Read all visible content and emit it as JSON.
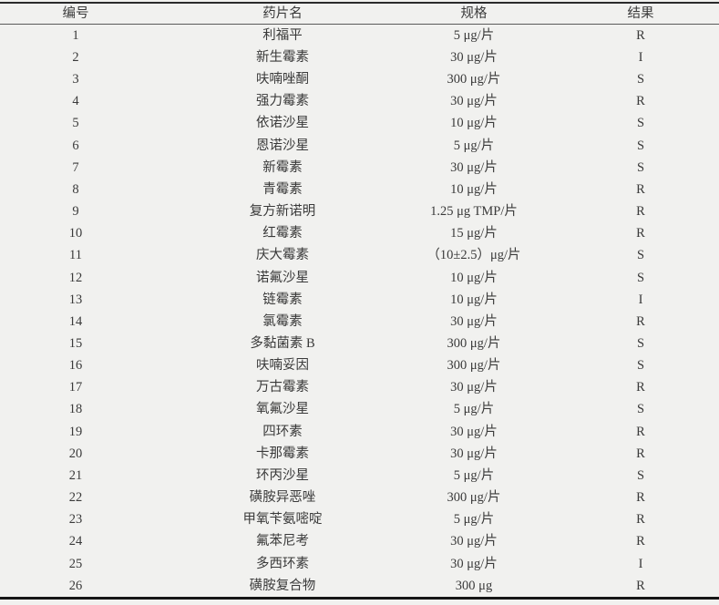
{
  "table": {
    "columns": [
      "编号",
      "药片名",
      "规格",
      "结果"
    ],
    "rows": [
      {
        "no": "1",
        "name": "利福平",
        "spec": "5 μg/片",
        "result": "R"
      },
      {
        "no": "2",
        "name": "新生霉素",
        "spec": "30 μg/片",
        "result": "I"
      },
      {
        "no": "3",
        "name": "呋喃唑酮",
        "spec": "300 μg/片",
        "result": "S"
      },
      {
        "no": "4",
        "name": "强力霉素",
        "spec": "30 μg/片",
        "result": "R"
      },
      {
        "no": "5",
        "name": "依诺沙星",
        "spec": "10 μg/片",
        "result": "S"
      },
      {
        "no": "6",
        "name": "恩诺沙星",
        "spec": "5 μg/片",
        "result": "S"
      },
      {
        "no": "7",
        "name": "新霉素",
        "spec": "30 μg/片",
        "result": "S"
      },
      {
        "no": "8",
        "name": "青霉素",
        "spec": "10 μg/片",
        "result": "R"
      },
      {
        "no": "9",
        "name": "复方新诺明",
        "spec": "1.25 μg TMP/片",
        "result": "R"
      },
      {
        "no": "10",
        "name": "红霉素",
        "spec": "15 μg/片",
        "result": "R"
      },
      {
        "no": "11",
        "name": "庆大霉素",
        "spec": "（10±2.5）μg/片",
        "result": "S"
      },
      {
        "no": "12",
        "name": "诺氟沙星",
        "spec": "10 μg/片",
        "result": "S"
      },
      {
        "no": "13",
        "name": "链霉素",
        "spec": "10 μg/片",
        "result": "I"
      },
      {
        "no": "14",
        "name": "氯霉素",
        "spec": "30 μg/片",
        "result": "R"
      },
      {
        "no": "15",
        "name": "多黏菌素 B",
        "spec": "300 μg/片",
        "result": "S"
      },
      {
        "no": "16",
        "name": "呋喃妥因",
        "spec": "300 μg/片",
        "result": "S"
      },
      {
        "no": "17",
        "name": "万古霉素",
        "spec": "30 μg/片",
        "result": "R"
      },
      {
        "no": "18",
        "name": "氧氟沙星",
        "spec": "5 μg/片",
        "result": "S"
      },
      {
        "no": "19",
        "name": "四环素",
        "spec": "30 μg/片",
        "result": "R"
      },
      {
        "no": "20",
        "name": "卡那霉素",
        "spec": "30 μg/片",
        "result": "R"
      },
      {
        "no": "21",
        "name": "环丙沙星",
        "spec": "5 μg/片",
        "result": "S"
      },
      {
        "no": "22",
        "name": "磺胺异恶唑",
        "spec": "300 μg/片",
        "result": "R"
      },
      {
        "no": "23",
        "name": "甲氧苄氨嘧啶",
        "spec": "5 μg/片",
        "result": "R"
      },
      {
        "no": "24",
        "name": "氟苯尼考",
        "spec": "30 μg/片",
        "result": "R"
      },
      {
        "no": "25",
        "name": "多西环素",
        "spec": "30 μg/片",
        "result": "I"
      },
      {
        "no": "26",
        "name": "磺胺复合物",
        "spec": "300 μg",
        "result": "R"
      }
    ]
  },
  "colors": {
    "page_background": "#f1f1ef",
    "text": "#3a3a3a",
    "top_border": "#2b2b2b",
    "header_underline": "#5a5a5a",
    "bottom_border": "#161616"
  }
}
